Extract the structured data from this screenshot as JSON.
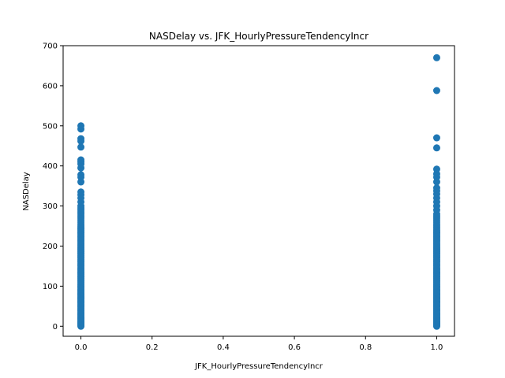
{
  "chart_data": {
    "type": "scatter",
    "title": "NASDelay vs. JFK_HourlyPressureTendencyIncr",
    "xlabel": "JFK_HourlyPressureTendencyIncr",
    "ylabel": "NASDelay",
    "xlim": [
      -0.05,
      1.05
    ],
    "ylim": [
      -25,
      700
    ],
    "xticks": [
      "0.0",
      "0.2",
      "0.4",
      "0.6",
      "0.8",
      "1.0"
    ],
    "xtick_values": [
      0,
      0.2,
      0.4,
      0.6,
      0.8,
      1.0
    ],
    "yticks": [
      "0",
      "100",
      "200",
      "300",
      "400",
      "500",
      "600",
      "700"
    ],
    "ytick_values": [
      0,
      100,
      200,
      300,
      400,
      500,
      600,
      700
    ],
    "grid": false,
    "color": "#1f77b4",
    "series": [
      {
        "x": 0,
        "y": [
          0,
          2,
          4,
          6,
          8,
          10,
          12,
          15,
          18,
          20,
          22,
          25,
          28,
          30,
          32,
          35,
          38,
          40,
          42,
          45,
          48,
          50,
          52,
          55,
          58,
          60,
          62,
          65,
          68,
          70,
          72,
          75,
          78,
          80,
          82,
          85,
          88,
          90,
          92,
          95,
          98,
          100,
          103,
          106,
          110,
          113,
          116,
          120,
          123,
          126,
          130,
          133,
          136,
          140,
          143,
          146,
          150,
          153,
          156,
          160,
          163,
          166,
          170,
          173,
          176,
          180,
          183,
          186,
          190,
          193,
          196,
          200,
          203,
          206,
          210,
          213,
          216,
          220,
          223,
          226,
          230,
          233,
          236,
          240,
          243,
          246,
          250,
          255,
          260,
          265,
          270,
          275,
          280,
          285,
          290,
          295,
          300,
          310,
          320,
          328,
          335,
          360,
          372,
          378,
          395,
          405,
          410,
          415,
          447,
          462,
          468,
          492,
          500
        ]
      },
      {
        "x": 1,
        "y": [
          0,
          2,
          4,
          6,
          8,
          10,
          12,
          15,
          18,
          20,
          22,
          25,
          28,
          30,
          32,
          35,
          38,
          40,
          42,
          45,
          48,
          50,
          52,
          55,
          58,
          60,
          62,
          65,
          68,
          70,
          72,
          75,
          78,
          80,
          82,
          85,
          88,
          90,
          92,
          95,
          98,
          100,
          103,
          106,
          110,
          113,
          116,
          120,
          123,
          126,
          130,
          133,
          136,
          140,
          143,
          146,
          150,
          153,
          156,
          160,
          163,
          166,
          170,
          173,
          176,
          180,
          183,
          186,
          190,
          193,
          196,
          200,
          203,
          206,
          210,
          213,
          216,
          220,
          223,
          226,
          230,
          233,
          236,
          240,
          245,
          250,
          255,
          260,
          265,
          270,
          275,
          280,
          290,
          300,
          310,
          320,
          330,
          338,
          345,
          360,
          372,
          380,
          392,
          445,
          470,
          588,
          670
        ]
      }
    ]
  }
}
